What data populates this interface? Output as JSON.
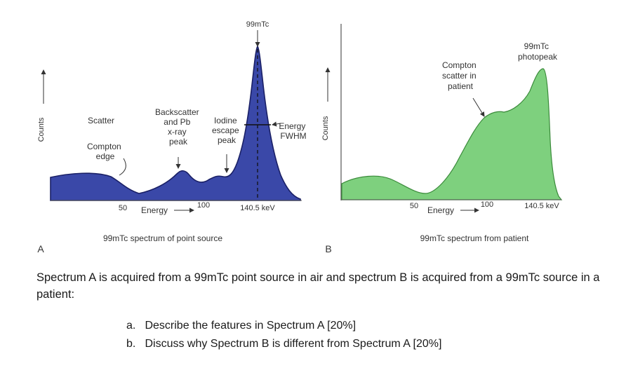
{
  "figure": {
    "panel_a": {
      "letter": "A",
      "y_axis_label": "Counts",
      "isotope_label": "99mTc",
      "annotations": {
        "scatter": "Scatter",
        "compton_edge": [
          "Compton",
          "edge"
        ],
        "backscatter": [
          "Backscatter",
          "and Pb",
          "x-ray",
          "peak"
        ],
        "iodine": [
          "Iodine",
          "escape",
          "peak"
        ],
        "fwhm": [
          "Energy",
          "FWHM"
        ]
      },
      "tick_labels": [
        "50",
        "100",
        "140.5 keV"
      ],
      "energy_label": "Energy",
      "caption": "99mTc spectrum of point source",
      "fill_color": "#3a48a8"
    },
    "panel_b": {
      "letter": "B",
      "y_axis_label": "Counts",
      "annotations": {
        "photopeak": [
          "99mTc",
          "photopeak"
        ],
        "compton": [
          "Compton",
          "scatter in",
          "patient"
        ]
      },
      "tick_labels": [
        "50",
        "100",
        "140.5 keV"
      ],
      "energy_label": "Energy",
      "caption": "99mTc spectrum from patient",
      "fill_color": "#7ed07e"
    }
  },
  "question": {
    "intro": "Spectrum A is acquired from a 99mTc point source in air and spectrum B is acquired from a 99mTc source in a patient:",
    "items": [
      {
        "label": "a.",
        "text": "Describe the features in Spectrum A [20%]"
      },
      {
        "label": "b.",
        "text": "Discuss why Spectrum B is different from Spectrum A [20%]"
      }
    ]
  }
}
